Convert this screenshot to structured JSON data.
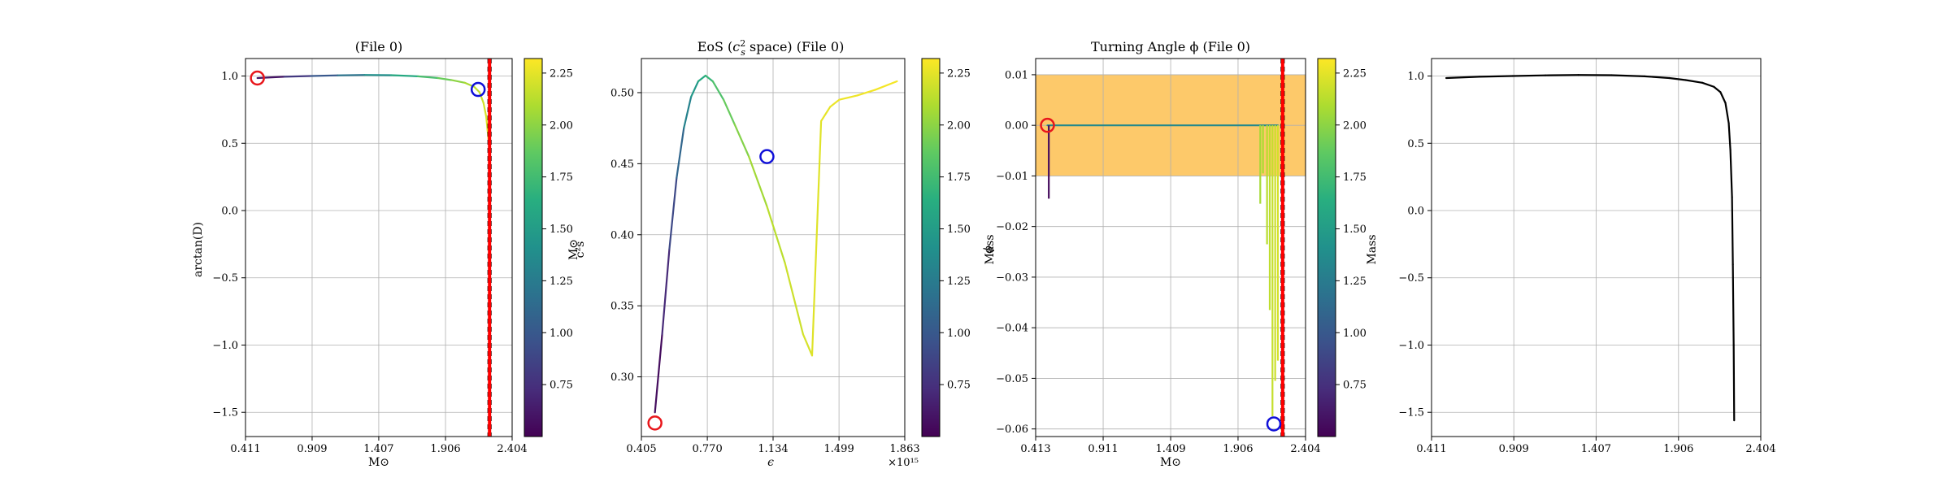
{
  "chart_data": [
    {
      "type": "line",
      "title": "(File 0)",
      "xlabel": "M⊙",
      "ylabel": "arctan(D)",
      "xlim": [
        0.411,
        2.404
      ],
      "ylim": [
        -1.68,
        1.13
      ],
      "xticks": [
        0.411,
        0.909,
        1.407,
        1.906,
        2.404
      ],
      "xtick_labels": [
        "0.411",
        "0.909",
        "1.407",
        "1.906",
        "2.404"
      ],
      "yticks": [
        1.0,
        0.5,
        0.0,
        -0.5,
        -1.0,
        -1.5
      ],
      "ytick_labels": [
        "1.0",
        "0.5",
        "0.0",
        "−0.5",
        "−1.0",
        "−1.5"
      ],
      "grid": true,
      "colormap": "viridis",
      "series": [
        {
          "x": [
            0.5,
            0.7,
            0.9,
            1.1,
            1.3,
            1.5,
            1.7,
            1.85,
            1.95,
            2.05,
            2.12,
            2.16,
            2.19,
            2.21,
            2.22,
            2.23
          ],
          "y": [
            0.985,
            0.995,
            1.0,
            1.005,
            1.008,
            1.006,
            0.998,
            0.985,
            0.97,
            0.95,
            0.92,
            0.88,
            0.8,
            0.7,
            0.6,
            0.5
          ],
          "c": [
            0.5,
            0.7,
            0.9,
            1.1,
            1.3,
            1.5,
            1.7,
            1.85,
            1.95,
            2.05,
            2.12,
            2.16,
            2.19,
            2.21,
            2.22,
            2.23
          ]
        }
      ],
      "markers": [
        {
          "x": 0.5,
          "y": 0.985,
          "color": "#e8161b"
        },
        {
          "x": 2.15,
          "y": 0.9,
          "color": "#1010d8"
        }
      ],
      "vlines": [
        {
          "x": 2.225,
          "color": "#000000",
          "style": "dashed"
        },
        {
          "x": 2.245,
          "color": "#000000",
          "style": "dashed"
        },
        {
          "x": 2.235,
          "color": "#ff0000",
          "style": "solid"
        }
      ],
      "colorbar": {
        "label": "M⊙",
        "min": 0.5,
        "max": 2.32,
        "ticks": [
          2.25,
          2.0,
          1.75,
          1.5,
          1.25,
          1.0,
          0.75
        ],
        "tick_labels": [
          "2.25",
          "2.00",
          "1.75",
          "1.50",
          "1.25",
          "1.00",
          "0.75"
        ]
      }
    },
    {
      "type": "line",
      "title": "EoS (c²s space) (File 0)",
      "title_main": "EoS (",
      "title_sym": "c",
      "title_sup": "2",
      "title_sub": "s",
      "title_rest": " space) (File 0)",
      "xlabel": "ϵ",
      "ylabel": "c²s",
      "x_multiplier": "×10¹⁵",
      "xlim": [
        0.405,
        1.863
      ],
      "ylim": [
        0.258,
        0.524
      ],
      "xticks": [
        0.405,
        0.77,
        1.134,
        1.499,
        1.863
      ],
      "xtick_labels": [
        "0.405",
        "0.770",
        "1.134",
        "1.499",
        "1.863"
      ],
      "yticks": [
        0.5,
        0.45,
        0.4,
        0.35,
        0.3
      ],
      "ytick_labels": [
        "0.50",
        "0.45",
        "0.40",
        "0.35",
        "0.30"
      ],
      "grid": true,
      "colormap": "viridis",
      "series": [
        {
          "x": [
            0.48,
            0.52,
            0.56,
            0.6,
            0.64,
            0.68,
            0.72,
            0.76,
            0.8,
            0.86,
            0.92,
            1.0,
            1.1,
            1.2,
            1.3,
            1.35,
            1.4,
            1.45,
            1.5,
            1.6,
            1.7,
            1.82
          ],
          "y": [
            0.275,
            0.33,
            0.39,
            0.44,
            0.475,
            0.497,
            0.508,
            0.512,
            0.508,
            0.495,
            0.478,
            0.455,
            0.42,
            0.38,
            0.33,
            0.315,
            0.48,
            0.49,
            0.495,
            0.498,
            0.502,
            0.508
          ],
          "c": [
            0.5,
            0.62,
            0.8,
            1.0,
            1.2,
            1.4,
            1.55,
            1.65,
            1.75,
            1.85,
            1.93,
            2.02,
            2.1,
            2.16,
            2.2,
            2.22,
            2.25,
            2.26,
            2.27,
            2.28,
            2.29,
            2.3
          ]
        }
      ],
      "markers": [
        {
          "x": 0.48,
          "y": 0.2675,
          "color": "#e8161b"
        },
        {
          "x": 1.1,
          "y": 0.455,
          "color": "#1010d8"
        }
      ],
      "vlines": [],
      "colorbar": {
        "label": "Mass",
        "min": 0.5,
        "max": 2.32,
        "ticks": [
          2.25,
          2.0,
          1.75,
          1.5,
          1.25,
          1.0,
          0.75
        ],
        "tick_labels": [
          "2.25",
          "2.00",
          "1.75",
          "1.50",
          "1.25",
          "1.00",
          "0.75"
        ]
      }
    },
    {
      "type": "line",
      "title": "Turning Angle ϕ (File 0)",
      "xlabel": "M⊙",
      "ylabel": "ϕ",
      "xlim": [
        0.413,
        2.404
      ],
      "ylim": [
        -0.0615,
        0.0132
      ],
      "xticks": [
        0.413,
        0.911,
        1.409,
        1.906,
        2.404
      ],
      "xtick_labels": [
        "0.413",
        "0.911",
        "1.409",
        "1.906",
        "2.404"
      ],
      "yticks": [
        0.01,
        0.0,
        -0.01,
        -0.02,
        -0.03,
        -0.04,
        -0.05,
        -0.06
      ],
      "ytick_labels": [
        "0.01",
        "0.00",
        "−0.01",
        "−0.02",
        "−0.03",
        "−0.04",
        "−0.05",
        "−0.06"
      ],
      "grid": true,
      "colormap": "viridis",
      "band": {
        "y0": -0.01,
        "y1": 0.01,
        "color": "#fdc662"
      },
      "series": [
        {
          "x": [
            0.5,
            2.2
          ],
          "y": [
            0.0,
            0.0
          ],
          "c": [
            0.5,
            2.2
          ]
        }
      ],
      "spikes": [
        {
          "x": 0.51,
          "y": -0.0145,
          "c": 0.55
        },
        {
          "x": 2.07,
          "y": -0.0155,
          "c": 2.07
        },
        {
          "x": 2.09,
          "y": -0.0095,
          "c": 2.09
        },
        {
          "x": 2.12,
          "y": -0.0235,
          "c": 2.12
        },
        {
          "x": 2.14,
          "y": -0.0365,
          "c": 2.14
        },
        {
          "x": 2.16,
          "y": -0.0575,
          "c": 2.16
        },
        {
          "x": 2.18,
          "y": -0.0505,
          "c": 2.18
        },
        {
          "x": 2.2,
          "y": -0.0465,
          "c": 2.2
        }
      ],
      "markers": [
        {
          "x": 0.5,
          "y": 0.0,
          "color": "#e8161b"
        },
        {
          "x": 2.17,
          "y": -0.059,
          "color": "#1010d8"
        }
      ],
      "vlines": [
        {
          "x": 2.225,
          "color": "#000000",
          "style": "dashed"
        },
        {
          "x": 2.245,
          "color": "#000000",
          "style": "dashed"
        },
        {
          "x": 2.235,
          "color": "#ff0000",
          "style": "solid"
        }
      ],
      "colorbar": {
        "label": "Mass",
        "min": 0.5,
        "max": 2.32,
        "ticks": [
          2.25,
          2.0,
          1.75,
          1.5,
          1.25,
          1.0,
          0.75
        ],
        "tick_labels": [
          "2.25",
          "2.00",
          "1.75",
          "1.50",
          "1.25",
          "1.00",
          "0.75"
        ]
      }
    },
    {
      "type": "line",
      "title": "",
      "xlabel": "",
      "ylabel": "",
      "xlim": [
        0.411,
        2.404
      ],
      "ylim": [
        -1.68,
        1.13
      ],
      "xticks": [
        0.411,
        0.909,
        1.407,
        1.906,
        2.404
      ],
      "xtick_labels": [
        "0.411",
        "0.909",
        "1.407",
        "1.906",
        "2.404"
      ],
      "yticks": [
        1.0,
        0.5,
        0.0,
        -0.5,
        -1.0,
        -1.5
      ],
      "ytick_labels": [
        "1.0",
        "0.5",
        "0.0",
        "−0.5",
        "−1.0",
        "−1.5"
      ],
      "grid": true,
      "series": [
        {
          "color": "#000000",
          "x": [
            0.5,
            0.7,
            0.9,
            1.1,
            1.3,
            1.5,
            1.7,
            1.85,
            1.95,
            2.05,
            2.12,
            2.16,
            2.19,
            2.21,
            2.22,
            2.23,
            2.235,
            2.24,
            2.243
          ],
          "y": [
            0.985,
            0.995,
            1.0,
            1.005,
            1.008,
            1.006,
            0.998,
            0.985,
            0.97,
            0.95,
            0.92,
            0.88,
            0.8,
            0.65,
            0.45,
            0.1,
            -0.4,
            -1.0,
            -1.56
          ]
        }
      ]
    }
  ]
}
